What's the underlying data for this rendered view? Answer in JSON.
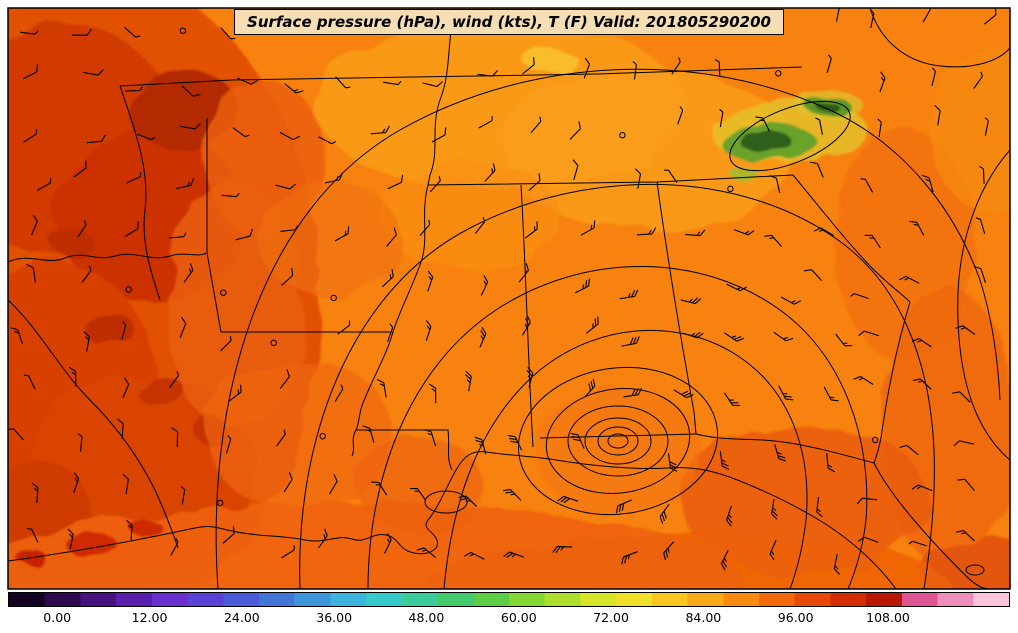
{
  "title": {
    "text": "Surface pressure (hPa), wind (kts), T (F) Valid: 201805290200"
  },
  "colors": {
    "title_bg": "#f5deb3",
    "map_base": "#f8820f",
    "contour": "#000000"
  },
  "chart_data": {
    "type": "heatmap",
    "title": "Surface pressure (hPa), wind (kts), T (F) Valid: 201805290200",
    "fields": [
      "Surface pressure (hPa)",
      "wind (kts)",
      "T (F)"
    ],
    "valid": "201805290200",
    "region": "Southeastern United States and Gulf Coast with closed low pressure center (concentric isobars) on the Mississippi/Alabama/Florida coast, wind barbs, and temperature shading",
    "colorbar": {
      "min": -6.4,
      "max": 123.6,
      "tick_values": [
        0,
        12,
        24,
        36,
        48,
        60,
        72,
        84,
        96,
        108
      ],
      "tick_labels": [
        "0.00",
        "12.00",
        "24.00",
        "36.00",
        "48.00",
        "60.00",
        "72.00",
        "84.00",
        "96.00",
        "108.00"
      ],
      "colors": [
        "#120420",
        "#2d0a50",
        "#471280",
        "#5b1fae",
        "#6930cf",
        "#5b42d6",
        "#4a5ad9",
        "#4277d8",
        "#3e96da",
        "#3bb3dc",
        "#38c9c9",
        "#3bcb9d",
        "#44ca6c",
        "#5ccd45",
        "#83d733",
        "#aede2c",
        "#d5e629",
        "#f1e02a",
        "#f8c61f",
        "#f9a915",
        "#f98c10",
        "#f46a0b",
        "#e84807",
        "#d32d05",
        "#ba1702",
        "#de5392",
        "#ee8fbb",
        "#f8c4da"
      ]
    }
  }
}
